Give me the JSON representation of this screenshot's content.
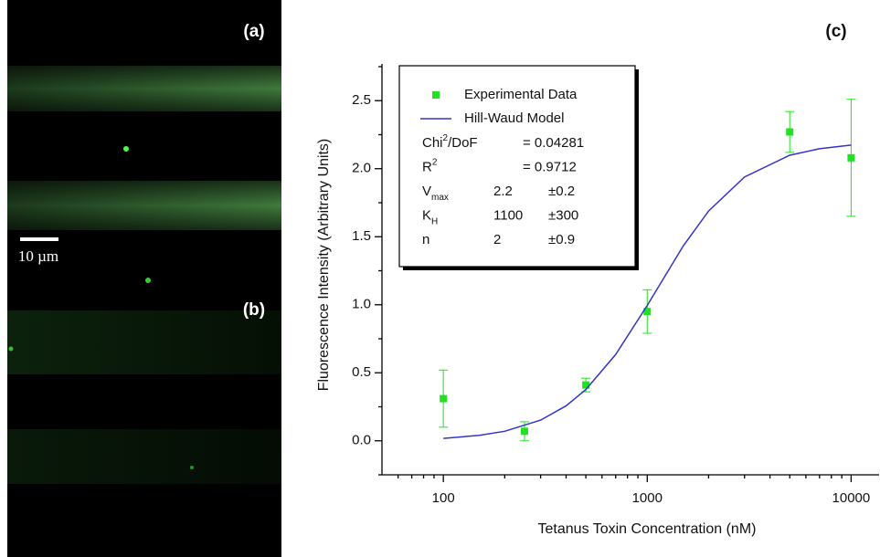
{
  "panels": {
    "a": "(a)",
    "b": "(b)",
    "c": "(c)",
    "scale_bar": "10 µm"
  },
  "chart_data": {
    "type": "scatter",
    "x_label": "Tetanus Toxin Concentration (nM)",
    "y_label": "Fluorescence Intensity (Arbitrary Units)",
    "log_x": true,
    "xlim": [
      50,
      14000
    ],
    "ylim": [
      -0.25,
      2.75
    ],
    "xticks": [
      100,
      1000,
      10000
    ],
    "xminorticks": [
      60,
      70,
      80,
      90,
      200,
      300,
      400,
      500,
      600,
      700,
      800,
      900,
      2000,
      3000,
      4000,
      5000,
      6000,
      7000,
      8000,
      9000
    ],
    "yticks": [
      {
        "value": 0,
        "label": "0.0"
      },
      0.5,
      {
        "value": 1,
        "label": "1.0"
      },
      1.5,
      {
        "value": 2,
        "label": "2.0"
      },
      2.5
    ],
    "yminorticks": [
      -0.25,
      0.25,
      0.75,
      1.25,
      1.75,
      2.25,
      2.75
    ],
    "series": [
      {
        "name": "Experimental Data",
        "type": "scatter",
        "color": "#22e022",
        "x": [
          100,
          250,
          500,
          1000,
          5000,
          10000
        ],
        "values": [
          0.31,
          0.07,
          0.41,
          0.95,
          2.27,
          2.08
        ],
        "errors": [
          0.21,
          0.07,
          0.05,
          0.16,
          0.15,
          0.43
        ]
      },
      {
        "name": "Hill-Waud Model",
        "type": "line",
        "color": "#3333cc",
        "x": [
          100,
          150,
          200,
          300,
          400,
          500,
          700,
          1000,
          1500,
          2000,
          3000,
          5000,
          7000,
          10000
        ],
        "values": [
          0.018,
          0.04,
          0.07,
          0.152,
          0.257,
          0.377,
          0.634,
          0.995,
          1.431,
          1.689,
          1.939,
          2.099,
          2.147,
          2.174
        ]
      }
    ],
    "fit_table": [
      {
        "label": "Chi",
        "sup": "2",
        "after": "/DoF",
        "value": "= 0.04281"
      },
      {
        "label": "R",
        "sup": "2",
        "value": "= 0.9712"
      },
      {
        "label": "V",
        "sub": "max",
        "value": "2.2",
        "error": "±0.2"
      },
      {
        "label": "K",
        "sub": "H",
        "value": "1100",
        "error": "±300"
      },
      {
        "label": "n",
        "value": "2",
        "error": "±0.9"
      }
    ]
  }
}
